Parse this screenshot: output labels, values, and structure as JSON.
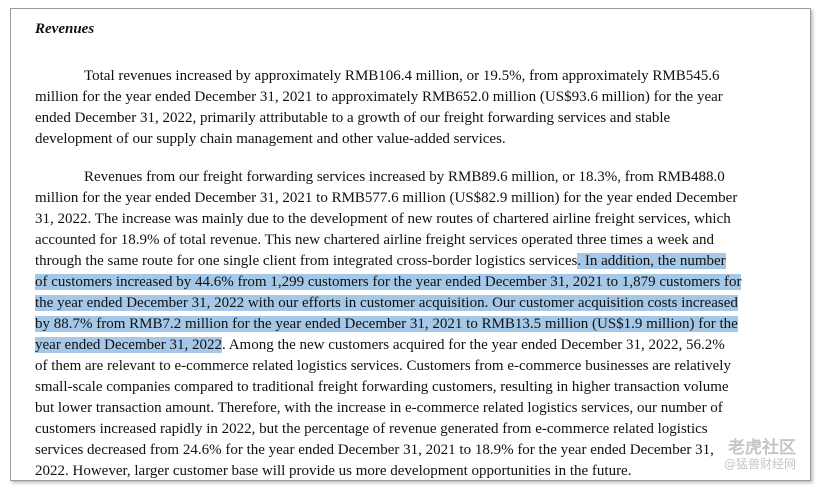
{
  "heading": "Revenues",
  "paragraph1": [
    "Total revenues increased by approximately RMB106.4 million, or 19.5%, from approximately RMB545.6",
    "million for the year ended December 31, 2021 to approximately RMB652.0 million (US$93.6 million) for the year",
    "ended December 31, 2022, primarily attributable to a growth of our freight forwarding services and stable",
    "development of our supply chain management and other value-added services."
  ],
  "paragraph2": {
    "line1": "Revenues from our freight forwarding services increased by RMB89.6 million, or 18.3%, from RMB488.0",
    "line2": "million for the year ended December 31, 2021 to RMB577.6 million (US$82.9 million) for the year ended December",
    "line3": "31, 2022. The increase was mainly due to the development of new routes of chartered airline freight services, which",
    "line4": "accounted for 18.9% of total revenue. This new chartered airline freight services operated three times a week and",
    "line5_plain": "through the same route for one single client from integrated cross-border logistics services",
    "line5_highlight": ". In addition, the number",
    "line6_highlight": "of customers increased by 44.6% from 1,299 customers for the year ended December 31, 2021 to 1,879 customers for",
    "line7_highlight": "the year ended December 31, 2022 with our efforts in customer acquisition. Our customer acquisition costs increased",
    "line8_highlight": "by 88.7% from RMB7.2 million for the year ended December 31, 2021 to RMB13.5 million (US$1.9 million) for the",
    "line9_highlight": "year ended December 31, 2022",
    "line9_plain": ". Among the new customers acquired for the year ended December 31, 2022, 56.2%",
    "line10": "of them are relevant to e-commerce related logistics services. Customers from e-commerce businesses are relatively",
    "line11": "small-scale companies compared to traditional freight forwarding customers, resulting in higher transaction volume",
    "line12": "but lower transaction amount. Therefore, with the increase in e-commerce related logistics services, our number of",
    "line13": "customers increased rapidly in 2022, but the percentage of revenue generated from e-commerce related logistics",
    "line14": "services decreased from 24.6% for the year ended December 31, 2021 to 18.9% for the year ended December 31,",
    "line15": "2022. However, larger customer base will provide us more development opportunities in the future."
  },
  "colors": {
    "highlight": "#a6c8e8",
    "text": "#111111",
    "border": "#9a9a9a"
  },
  "watermark": {
    "main": "老虎社区",
    "sub": "@猛兽财经网"
  }
}
